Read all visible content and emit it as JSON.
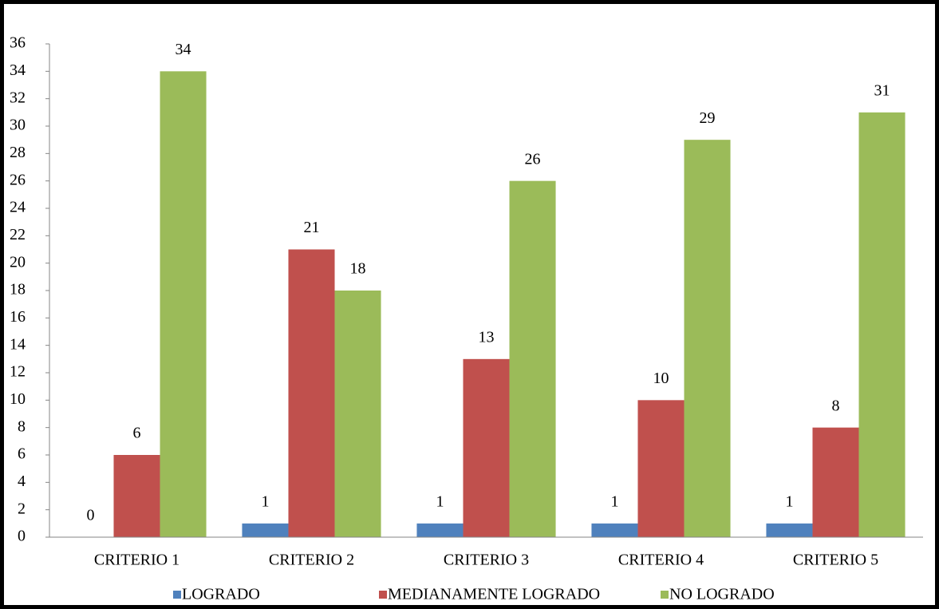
{
  "chart_data": {
    "type": "bar",
    "categories": [
      "CRITERIO 1",
      "CRITERIO 2",
      "CRITERIO 3",
      "CRITERIO 4",
      "CRITERIO 5"
    ],
    "series": [
      {
        "name": "LOGRADO",
        "color": "#4f81bd",
        "values": [
          0,
          1,
          1,
          1,
          1
        ]
      },
      {
        "name": "MEDIANAMENTE LOGRADO",
        "color": "#c0504d",
        "values": [
          6,
          21,
          13,
          10,
          8
        ]
      },
      {
        "name": "NO LOGRADO",
        "color": "#9bbb59",
        "values": [
          34,
          18,
          26,
          29,
          31
        ]
      }
    ],
    "ylim": [
      0,
      36
    ],
    "yticks": [
      0,
      2,
      4,
      6,
      8,
      10,
      12,
      14,
      16,
      18,
      20,
      22,
      24,
      26,
      28,
      30,
      32,
      34,
      36
    ],
    "grid": false,
    "legend": "bottom"
  }
}
